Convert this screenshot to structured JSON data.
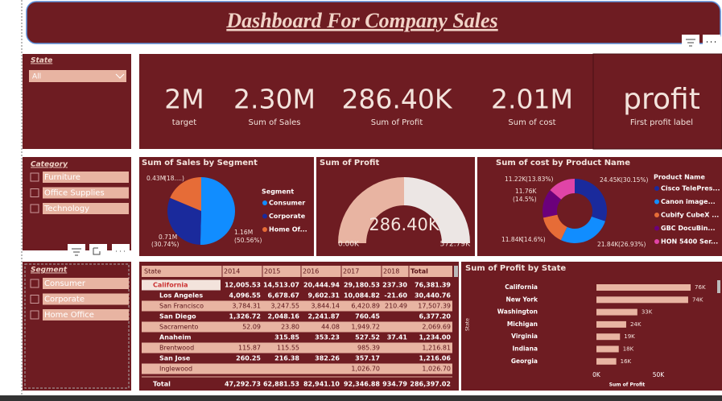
{
  "header": {
    "title": "Dashboard For Company Sales"
  },
  "slicers": {
    "state": {
      "title": "State",
      "selected": "All"
    },
    "category": {
      "title": "Category",
      "items": [
        "Furniture",
        "Office Supplies",
        "Technology"
      ]
    },
    "segment": {
      "title": "Segment",
      "items": [
        "Consumer",
        "Corporate",
        "Home Office"
      ]
    }
  },
  "kpis": [
    {
      "value": "2M",
      "label": "target"
    },
    {
      "value": "2.30M",
      "label": "Sum of Sales"
    },
    {
      "value": "286.40K",
      "label": "Sum of Profit"
    },
    {
      "value": "2.01M",
      "label": "Sum of cost"
    },
    {
      "value": "profit",
      "label": "First profit label"
    }
  ],
  "chart_data": [
    {
      "type": "pie",
      "title": "Sum of Sales by Segment",
      "legend_title": "Segment",
      "series": [
        {
          "name": "Consumer",
          "color": "#118dff",
          "values": [
            1.16
          ],
          "value_labels": [
            "1.16M"
          ],
          "pct_labels": [
            "(50.56%)"
          ]
        },
        {
          "name": "Corporate",
          "color": "#1a2a9c",
          "values": [
            0.71
          ],
          "value_labels": [
            "0.71M"
          ],
          "pct_labels": [
            "(30.74%)"
          ]
        },
        {
          "name": "Home Of...",
          "color": "#e66c37",
          "values": [
            0.43
          ],
          "value_labels": [
            "0.43M"
          ],
          "pct_labels": [
            "(18....)"
          ]
        }
      ]
    },
    {
      "type": "gauge",
      "title": "Sum of Profit",
      "value": 286.4,
      "value_label": "286.40K",
      "min": {
        "value": 0,
        "label": "0.00K"
      },
      "max": {
        "value": 572.79,
        "label": "572.79K"
      },
      "color": "#e8b4a2",
      "track_color": "#ece6e4"
    },
    {
      "type": "donut",
      "title": "Sum of cost by Product Name",
      "legend_title": "Product Name",
      "series": [
        {
          "name": "Cisco TelePres...",
          "color": "#1a2a9c",
          "values": [
            24.45
          ],
          "value_labels": [
            "24.45K"
          ],
          "pct_labels": [
            "(30.15%)"
          ]
        },
        {
          "name": "Canon image...",
          "color": "#118dff",
          "values": [
            21.84
          ],
          "value_labels": [
            "21.84K"
          ],
          "pct_labels": [
            "(26.93%)"
          ]
        },
        {
          "name": "Cubify CubeX ...",
          "color": "#e66c37",
          "values": [
            11.84
          ],
          "value_labels": [
            "11.84K"
          ],
          "pct_labels": [
            "(14.6%)"
          ]
        },
        {
          "name": "GBC DocuBin...",
          "color": "#6b007b",
          "values": [
            11.76
          ],
          "value_labels": [
            "11.76K"
          ],
          "pct_labels": [
            "(14.5%)"
          ]
        },
        {
          "name": "HON 5400 Ser...",
          "color": "#e044a7",
          "values": [
            11.22
          ],
          "value_labels": [
            "11.22K"
          ],
          "pct_labels": [
            "(13.83%)"
          ]
        }
      ]
    },
    {
      "type": "hbar",
      "title": "Sum of Profit by State",
      "x_label": "Sum of Profit",
      "y_label": "State",
      "categories": [
        "California",
        "New York",
        "Washington",
        "Michigan",
        "Virginia",
        "Indiana",
        "Georgia"
      ],
      "values": [
        76,
        74,
        33,
        24,
        19,
        18,
        16
      ],
      "value_labels": [
        "76K",
        "74K",
        "33K",
        "24K",
        "19K",
        "18K",
        "16K"
      ],
      "color": "#e8b4a2",
      "xlim": [
        0,
        100
      ],
      "xticks": [
        {
          "value": 0,
          "label": "0K"
        },
        {
          "value": 50,
          "label": "50K"
        }
      ]
    }
  ],
  "table": {
    "columns": [
      "State",
      "2014",
      "2015",
      "2016",
      "2017",
      "2018",
      "Total"
    ],
    "rows": [
      [
        "California",
        "12,005.53",
        "14,513.07",
        "20,444.94",
        "29,180.53",
        "237.30",
        "76,381.39"
      ],
      [
        "Los Angeles",
        "4,096.55",
        "6,678.67",
        "9,602.31",
        "10,084.82",
        "-21.60",
        "30,440.76"
      ],
      [
        "San Francisco",
        "3,784.31",
        "3,247.55",
        "3,844.14",
        "6,420.89",
        "210.49",
        "17,507.39"
      ],
      [
        "San Diego",
        "1,326.72",
        "2,048.16",
        "2,241.87",
        "760.45",
        null,
        "6,377.20"
      ],
      [
        "Sacramento",
        "52.09",
        "23.80",
        "44.08",
        "1,949.72",
        null,
        "2,069.69"
      ],
      [
        "Anaheim",
        null,
        "315.85",
        "353.23",
        "527.52",
        "37.41",
        "1,234.00"
      ],
      [
        "Brentwood",
        "115.87",
        "115.55",
        null,
        "985.39",
        null,
        "1,216.81"
      ],
      [
        "San Jose",
        "260.25",
        "216.38",
        "382.26",
        "357.17",
        null,
        "1,216.06"
      ],
      [
        "Inglewood",
        null,
        null,
        null,
        "1,026.70",
        null,
        "1,026.70"
      ],
      [
        "Total",
        "47,292.73",
        "62,881.53",
        "82,941.10",
        "92,346.88",
        "934.79",
        "286,397.02"
      ]
    ]
  }
}
